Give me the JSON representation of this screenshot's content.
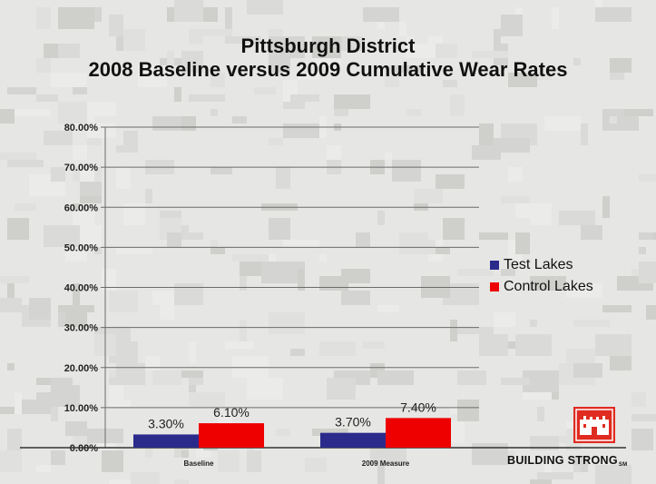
{
  "slide": {
    "title_line1": "Pittsburgh District",
    "title_line2": "2008 Baseline versus 2009 Cumulative Wear Rates",
    "footer_text": "BUILDING STRONG",
    "footer_mark": "SM",
    "logo_icon": "castle-logo-icon"
  },
  "colors": {
    "test_lakes": "#2b2b8c",
    "control_lakes": "#ee0000",
    "logo_red": "#e02b20"
  },
  "chart_data": {
    "type": "bar",
    "title": "Pittsburgh District 2008 Baseline versus 2009 Cumulative Wear Rates",
    "categories": [
      "Baseline",
      "2009 Measure"
    ],
    "series": [
      {
        "name": "Test Lakes",
        "values": [
          3.3,
          3.7
        ],
        "labels": [
          "3.30%",
          "3.70%"
        ]
      },
      {
        "name": "Control Lakes",
        "values": [
          6.1,
          7.4
        ],
        "labels": [
          "6.10%",
          "7.40%"
        ]
      }
    ],
    "yticks": [
      "0.00%",
      "10.00%",
      "20.00%",
      "30.00%",
      "40.00%",
      "50.00%",
      "60.00%",
      "70.00%",
      "80.00%"
    ],
    "ylim": [
      0,
      80
    ],
    "grid": true,
    "legend_position": "right"
  }
}
